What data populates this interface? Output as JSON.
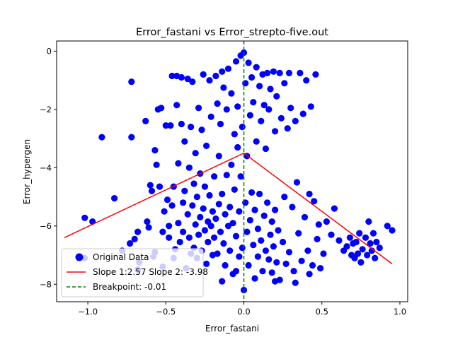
{
  "chart_data": {
    "type": "scatter",
    "title": "Error_fastani vs Error_strepto-five.out",
    "xlabel": "Error_fastani",
    "ylabel": "Error_hypergen",
    "xlim": [
      -1.2,
      1.05
    ],
    "ylim": [
      -8.6,
      0.35
    ],
    "x_ticks": [
      -1.0,
      -0.5,
      0.0,
      0.5,
      1.0
    ],
    "x_tick_labels": [
      "−1.0",
      "−0.5",
      "0.0",
      "0.5",
      "1.0"
    ],
    "y_ticks": [
      0,
      -2,
      -4,
      -6,
      -8
    ],
    "y_tick_labels": [
      "0",
      "−2",
      "−4",
      "−6",
      "−8"
    ],
    "grid": false,
    "legend_position": "lower-left",
    "colors": {
      "points": "#0000ff",
      "fit": "#ff0000",
      "breakpoint": "#008000"
    },
    "legend": [
      {
        "key": "points",
        "label": "Original Data"
      },
      {
        "key": "fit",
        "label": "Slope 1:2.57 Slope 2: -3.98"
      },
      {
        "key": "breakpoint",
        "label": "Breakpoint: -0.01"
      }
    ],
    "fit_line": [
      [
        -1.15,
        -6.4
      ],
      [
        0.0,
        -3.5
      ],
      [
        0.95,
        -7.3
      ]
    ],
    "breakpoint_x": 0.0,
    "series": [
      {
        "values": [
          [
            -1.02,
            -5.72
          ],
          [
            -0.97,
            -5.85
          ],
          [
            -0.91,
            -2.95
          ],
          [
            -0.83,
            -5.05
          ],
          [
            -0.78,
            -6.85
          ],
          [
            -0.73,
            -6.6
          ],
          [
            -0.72,
            -1.05
          ],
          [
            -0.72,
            -2.95
          ],
          [
            -0.7,
            -6.45
          ],
          [
            -0.68,
            -6.2
          ],
          [
            -0.67,
            -7.25
          ],
          [
            -0.63,
            -2.4
          ],
          [
            -0.62,
            -5.85
          ],
          [
            -0.61,
            -6.05
          ],
          [
            -0.6,
            -4.6
          ],
          [
            -0.59,
            -4.8
          ],
          [
            -0.58,
            -7.05
          ],
          [
            -0.57,
            -3.4
          ],
          [
            -0.57,
            -6.9
          ],
          [
            -0.56,
            -3.9
          ],
          [
            -0.55,
            -2.0
          ],
          [
            -0.54,
            -4.65
          ],
          [
            -0.53,
            -1.95
          ],
          [
            -0.52,
            -6.2
          ],
          [
            -0.51,
            -5.5
          ],
          [
            -0.5,
            -2.55
          ],
          [
            -0.49,
            -5.1
          ],
          [
            -0.48,
            -6.0
          ],
          [
            -0.48,
            -6.4
          ],
          [
            -0.47,
            -2.55
          ],
          [
            -0.46,
            -0.85
          ],
          [
            -0.46,
            -5.3
          ],
          [
            -0.45,
            -4.65
          ],
          [
            -0.45,
            -7.1
          ],
          [
            -0.44,
            -6.8
          ],
          [
            -0.43,
            -0.85
          ],
          [
            -0.43,
            -1.85
          ],
          [
            -0.42,
            -5.9
          ],
          [
            -0.42,
            -3.85
          ],
          [
            -0.41,
            -6.55
          ],
          [
            -0.4,
            -0.9
          ],
          [
            -0.4,
            -2.5
          ],
          [
            -0.39,
            -5.2
          ],
          [
            -0.39,
            -6.2
          ],
          [
            -0.38,
            -3.1
          ],
          [
            -0.38,
            -4.8
          ],
          [
            -0.37,
            -7.45
          ],
          [
            -0.36,
            -0.95
          ],
          [
            -0.36,
            -5.6
          ],
          [
            -0.35,
            -4.0
          ],
          [
            -0.35,
            -6.4
          ],
          [
            -0.34,
            -2.6
          ],
          [
            -0.34,
            -6.95
          ],
          [
            -0.33,
            -5.3
          ],
          [
            -0.33,
            -1.05
          ],
          [
            -0.32,
            -6.75
          ],
          [
            -0.32,
            -4.55
          ],
          [
            -0.31,
            -5.95
          ],
          [
            -0.31,
            -3.5
          ],
          [
            -0.3,
            -7.1
          ],
          [
            -0.3,
            -5.0
          ],
          [
            -0.29,
            -6.3
          ],
          [
            -0.29,
            -1.95
          ],
          [
            -0.28,
            -4.2
          ],
          [
            -0.28,
            -5.7
          ],
          [
            -0.27,
            -2.7
          ],
          [
            -0.27,
            -6.85
          ],
          [
            -0.26,
            -0.8
          ],
          [
            -0.26,
            -5.4
          ],
          [
            -0.25,
            -6.15
          ],
          [
            -0.25,
            -4.65
          ],
          [
            -0.24,
            -7.3
          ],
          [
            -0.24,
            -3.25
          ],
          [
            -0.23,
            -5.85
          ],
          [
            -0.23,
            -6.55
          ],
          [
            -0.22,
            -1.0
          ],
          [
            -0.22,
            -4.95
          ],
          [
            -0.21,
            -6.0
          ],
          [
            -0.21,
            -2.25
          ],
          [
            -0.2,
            -5.5
          ],
          [
            -0.2,
            -7.0
          ],
          [
            -0.19,
            -4.3
          ],
          [
            -0.19,
            -6.4
          ],
          [
            -0.18,
            -0.85
          ],
          [
            -0.18,
            -5.75
          ],
          [
            -0.17,
            -1.8
          ],
          [
            -0.17,
            -6.95
          ],
          [
            -0.16,
            -3.6
          ],
          [
            -0.16,
            -5.25
          ],
          [
            -0.15,
            -6.2
          ],
          [
            -0.15,
            -2.5
          ],
          [
            -0.14,
            -0.7
          ],
          [
            -0.14,
            -4.9
          ],
          [
            -0.13,
            -6.6
          ],
          [
            -0.13,
            -1.25
          ],
          [
            -0.12,
            -5.6
          ],
          [
            -0.12,
            -7.35
          ],
          [
            -0.11,
            -4.25
          ],
          [
            -0.11,
            -2.0
          ],
          [
            -0.1,
            -6.0
          ],
          [
            -0.1,
            -0.6
          ],
          [
            -0.09,
            -5.35
          ],
          [
            -0.09,
            -6.85
          ],
          [
            -0.08,
            -3.9
          ],
          [
            -0.08,
            -1.45
          ],
          [
            -0.07,
            -5.9
          ],
          [
            -0.07,
            -7.65
          ],
          [
            -0.06,
            -2.85
          ],
          [
            -0.06,
            -4.75
          ],
          [
            -0.05,
            -0.35
          ],
          [
            -0.05,
            -6.35
          ],
          [
            -0.04,
            -3.3
          ],
          [
            -0.04,
            -1.9
          ],
          [
            -0.03,
            -5.5
          ],
          [
            -0.03,
            -7.05
          ],
          [
            -0.02,
            -0.15
          ],
          [
            -0.02,
            -4.3
          ],
          [
            -0.01,
            -2.6
          ],
          [
            -0.01,
            -6.75
          ],
          [
            0.0,
            -0.05
          ],
          [
            0.0,
            -8.2
          ],
          [
            0.01,
            -5.2
          ],
          [
            0.01,
            -1.1
          ],
          [
            0.02,
            -6.2
          ],
          [
            0.02,
            -3.6
          ],
          [
            0.03,
            -0.4
          ],
          [
            0.03,
            -7.35
          ],
          [
            0.04,
            -2.2
          ],
          [
            0.04,
            -5.8
          ],
          [
            0.05,
            -4.85
          ],
          [
            0.05,
            -0.9
          ],
          [
            0.06,
            -6.65
          ],
          [
            0.06,
            -1.75
          ],
          [
            0.07,
            -7.8
          ],
          [
            0.07,
            -5.45
          ],
          [
            0.08,
            -0.55
          ],
          [
            0.08,
            -3.1
          ],
          [
            0.09,
            -6.1
          ],
          [
            0.09,
            -7.05
          ],
          [
            0.1,
            -1.2
          ],
          [
            0.1,
            -4.9
          ],
          [
            0.11,
            -6.5
          ],
          [
            0.11,
            -2.4
          ],
          [
            0.12,
            -0.8
          ],
          [
            0.12,
            -7.55
          ],
          [
            0.13,
            -5.65
          ],
          [
            0.13,
            -1.85
          ],
          [
            0.14,
            -6.85
          ],
          [
            0.14,
            -3.35
          ],
          [
            0.15,
            -0.75
          ],
          [
            0.15,
            -5.2
          ],
          [
            0.16,
            -7.15
          ],
          [
            0.16,
            -2.0
          ],
          [
            0.17,
            -6.3
          ],
          [
            0.17,
            -1.3
          ],
          [
            0.18,
            -5.85
          ],
          [
            0.18,
            -7.6
          ],
          [
            0.19,
            -0.7
          ],
          [
            0.19,
            -6.7
          ],
          [
            0.2,
            -2.75
          ],
          [
            0.2,
            -5.45
          ],
          [
            0.21,
            -7.25
          ],
          [
            0.21,
            -1.55
          ],
          [
            0.22,
            -6.15
          ],
          [
            0.23,
            -0.75
          ],
          [
            0.23,
            -7.85
          ],
          [
            0.24,
            -2.3
          ],
          [
            0.25,
            -6.55
          ],
          [
            0.26,
            -5.0
          ],
          [
            0.26,
            -1.1
          ],
          [
            0.27,
            -7.3
          ],
          [
            0.28,
            -2.65
          ],
          [
            0.29,
            -0.75
          ],
          [
            0.29,
            -6.9
          ],
          [
            0.3,
            -1.95
          ],
          [
            0.31,
            -5.35
          ],
          [
            0.32,
            -7.55
          ],
          [
            0.33,
            -2.4
          ],
          [
            0.34,
            -4.5
          ],
          [
            0.35,
            -6.25
          ],
          [
            0.36,
            -0.75
          ],
          [
            0.37,
            -7.2
          ],
          [
            0.38,
            -2.15
          ],
          [
            0.39,
            -5.7
          ],
          [
            0.4,
            -1.0
          ],
          [
            0.41,
            -6.85
          ],
          [
            0.42,
            -4.9
          ],
          [
            0.43,
            -1.9
          ],
          [
            0.44,
            -7.35
          ],
          [
            0.45,
            -5.15
          ],
          [
            0.46,
            -0.8
          ],
          [
            0.47,
            -6.45
          ],
          [
            0.48,
            -5.95
          ],
          [
            0.49,
            -7.45
          ],
          [
            0.51,
            -6.95
          ],
          [
            0.53,
            -5.85
          ],
          [
            0.56,
            -6.3
          ],
          [
            0.58,
            -5.4
          ],
          [
            0.61,
            -6.5
          ],
          [
            0.64,
            -6.85
          ],
          [
            0.66,
            -6.7
          ],
          [
            0.68,
            -6.4
          ],
          [
            0.69,
            -7.0
          ],
          [
            0.7,
            -6.6
          ],
          [
            0.71,
            -7.1
          ],
          [
            0.72,
            -6.55
          ],
          [
            0.73,
            -6.95
          ],
          [
            0.74,
            -6.25
          ],
          [
            0.75,
            -7.25
          ],
          [
            0.76,
            -6.8
          ],
          [
            0.78,
            -6.4
          ],
          [
            0.79,
            -7.0
          ],
          [
            0.8,
            -5.85
          ],
          [
            0.81,
            -6.6
          ],
          [
            0.82,
            -6.85
          ],
          [
            0.83,
            -6.25
          ],
          [
            0.84,
            -7.1
          ],
          [
            0.85,
            -6.55
          ],
          [
            0.87,
            -6.75
          ],
          [
            0.92,
            -6.0
          ],
          [
            0.95,
            -6.15
          ],
          [
            -1.02,
            -7.1
          ],
          [
            -0.68,
            -7.5
          ],
          [
            -0.52,
            -7.4
          ],
          [
            -0.14,
            -7.9
          ],
          [
            -0.05,
            -7.55
          ],
          [
            0.2,
            -7.9
          ],
          [
            0.33,
            -7.95
          ],
          [
            0.42,
            -7.65
          ]
        ]
      }
    ]
  }
}
